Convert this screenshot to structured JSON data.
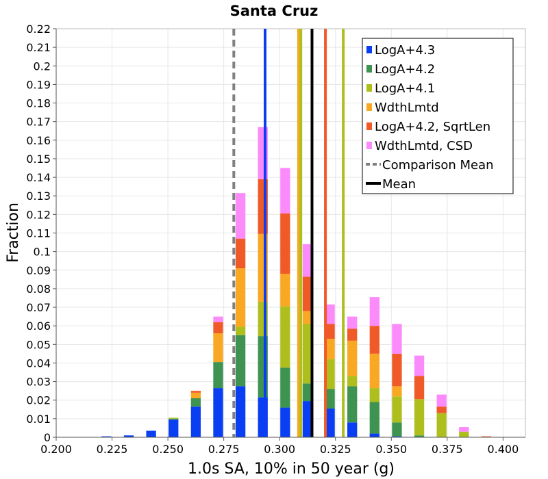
{
  "chart_data": {
    "type": "bar",
    "stacked": true,
    "title": "Santa Cruz",
    "xlabel": "1.0s SA, 10% in 50 year (g)",
    "ylabel": "Fraction",
    "xlim": [
      0.2,
      0.41
    ],
    "ylim": [
      0,
      0.22
    ],
    "grid": true,
    "legend_position": "top-right",
    "xticks": [
      {
        "value": 0.2,
        "label": "0.200"
      },
      {
        "value": 0.225,
        "label": "0.225"
      },
      {
        "value": 0.25,
        "label": "0.250"
      },
      {
        "value": 0.275,
        "label": "0.275"
      },
      {
        "value": 0.3,
        "label": "0.300"
      },
      {
        "value": 0.325,
        "label": "0.325"
      },
      {
        "value": 0.35,
        "label": "0.350"
      },
      {
        "value": 0.375,
        "label": "0.375"
      },
      {
        "value": 0.4,
        "label": "0.400"
      }
    ],
    "yticks": [
      {
        "value": 0,
        "label": "0"
      },
      {
        "value": 0.01,
        "label": "0.01"
      },
      {
        "value": 0.02,
        "label": "0.02"
      },
      {
        "value": 0.03,
        "label": "0.03"
      },
      {
        "value": 0.04,
        "label": "0.04"
      },
      {
        "value": 0.05,
        "label": "0.05"
      },
      {
        "value": 0.06,
        "label": "0.06"
      },
      {
        "value": 0.07,
        "label": "0.07"
      },
      {
        "value": 0.08,
        "label": "0.08"
      },
      {
        "value": 0.09,
        "label": "0.09"
      },
      {
        "value": 0.1,
        "label": "0.1"
      },
      {
        "value": 0.11,
        "label": "0.11"
      },
      {
        "value": 0.12,
        "label": "0.12"
      },
      {
        "value": 0.13,
        "label": "0.13"
      },
      {
        "value": 0.14,
        "label": "0.14"
      },
      {
        "value": 0.15,
        "label": "0.15"
      },
      {
        "value": 0.16,
        "label": "0.16"
      },
      {
        "value": 0.17,
        "label": "0.17"
      },
      {
        "value": 0.18,
        "label": "0.18"
      },
      {
        "value": 0.19,
        "label": "0.19"
      },
      {
        "value": 0.2,
        "label": "0.2"
      },
      {
        "value": 0.21,
        "label": "0.21"
      },
      {
        "value": 0.22,
        "label": "0.22"
      }
    ],
    "bin_width": 0.005,
    "bin_edges": [
      0.2,
      0.205,
      0.21,
      0.215,
      0.22,
      0.225,
      0.23,
      0.235,
      0.24,
      0.245,
      0.25,
      0.255,
      0.26,
      0.265,
      0.27,
      0.275,
      0.28,
      0.285,
      0.29,
      0.295,
      0.3,
      0.305,
      0.31,
      0.315,
      0.32,
      0.325,
      0.33,
      0.335,
      0.34,
      0.345,
      0.35,
      0.355,
      0.36,
      0.365,
      0.37,
      0.375,
      0.38,
      0.385,
      0.39,
      0.395,
      0.4,
      0.405
    ],
    "series": [
      {
        "name": "LogA+4.3",
        "color": "#0a3ef2",
        "values": [
          0,
          0,
          0,
          0,
          0.0005,
          0,
          0.001,
          0,
          0.0035,
          0,
          0.0095,
          0,
          0.0165,
          0,
          0.0265,
          0,
          0.0275,
          0,
          0.0215,
          0,
          0.016,
          0,
          0.0195,
          0,
          0.0155,
          0,
          0.008,
          0,
          0.002,
          0,
          0.0005,
          0,
          0,
          0,
          0,
          0,
          0,
          0,
          0,
          0,
          0
        ]
      },
      {
        "name": "LogA+4.2",
        "color": "#3f9350",
        "values": [
          0,
          0,
          0,
          0,
          0,
          0,
          0,
          0,
          0,
          0,
          0.0005,
          0,
          0.0045,
          0,
          0.014,
          0,
          0.0275,
          0,
          0.033,
          0,
          0.0215,
          0,
          0.0095,
          0,
          0.0105,
          0,
          0.0195,
          0,
          0.017,
          0,
          0.0075,
          0,
          0.001,
          0,
          0,
          0,
          0,
          0,
          0,
          0,
          0
        ]
      },
      {
        "name": "LogA+4.1",
        "color": "#aebf1d",
        "values": [
          0,
          0,
          0,
          0,
          0,
          0,
          0,
          0,
          0,
          0,
          0.0005,
          0,
          0,
          0,
          0,
          0,
          0.0045,
          0,
          0.0185,
          0,
          0.033,
          0,
          0.032,
          0,
          0.016,
          0,
          0.0055,
          0,
          0.0075,
          0,
          0.014,
          0,
          0.0195,
          0,
          0.013,
          0,
          0.003,
          0,
          0,
          0,
          0
        ]
      },
      {
        "name": "WdthLmtd",
        "color": "#f9a823",
        "values": [
          0,
          0,
          0,
          0,
          0,
          0,
          0,
          0,
          0,
          0,
          0,
          0,
          0.003,
          0,
          0.0155,
          0,
          0.0315,
          0,
          0.0365,
          0,
          0.0175,
          0,
          0.007,
          0,
          0.011,
          0,
          0.019,
          0,
          0.0185,
          0,
          0.0055,
          0,
          0,
          0,
          0,
          0,
          0,
          0,
          0,
          0,
          0
        ]
      },
      {
        "name": "LogA+4.2, SqrtLen",
        "color": "#f05a28",
        "values": [
          0,
          0,
          0,
          0,
          0,
          0,
          0,
          0,
          0,
          0,
          0,
          0,
          0.001,
          0,
          0.006,
          0,
          0.016,
          0,
          0.0295,
          0,
          0.0325,
          0,
          0.0185,
          0,
          0.008,
          0,
          0.0065,
          0,
          0.015,
          0,
          0.0175,
          0,
          0.0125,
          0,
          0.0035,
          0,
          0,
          0,
          0.0005,
          0,
          0
        ]
      },
      {
        "name": "WdthLmtd, CSD",
        "color": "#fb8afb",
        "values": [
          0,
          0,
          0,
          0,
          0,
          0,
          0,
          0,
          0,
          0,
          0,
          0,
          0,
          0,
          0.003,
          0,
          0.0245,
          0,
          0.028,
          0,
          0.0245,
          0,
          0.0175,
          0,
          0.0105,
          0,
          0.0065,
          0,
          0.0155,
          0,
          0.016,
          0,
          0.011,
          0,
          0.0065,
          0,
          0.0025,
          0,
          0,
          0,
          0
        ]
      }
    ],
    "vertical_lines": [
      {
        "name": "Comparison Mean",
        "x": 0.2795,
        "color": "#808080",
        "dashed": true
      },
      {
        "name": "LogA+4.3",
        "x": 0.2935,
        "color": "#0a3ef2",
        "dashed": false
      },
      {
        "name": "WdthLmtd",
        "x": 0.3085,
        "color": "#f9a823",
        "dashed": false
      },
      {
        "name": "LogA+4.1",
        "x": 0.3095,
        "color": "#aebf1d",
        "dashed": false
      },
      {
        "name": "Mean",
        "x": 0.3145,
        "color": "#000000",
        "dashed": false
      },
      {
        "name": "LogA+4.2, SqrtLen",
        "x": 0.3205,
        "color": "#f05a28",
        "dashed": false
      },
      {
        "name": "LogA+4.2",
        "x": 0.3285,
        "color": "#aebf1d",
        "dashed": false
      }
    ],
    "legend": [
      {
        "label": "LogA+4.3",
        "kind": "square",
        "color": "#0a3ef2"
      },
      {
        "label": "LogA+4.2",
        "kind": "square",
        "color": "#3f9350"
      },
      {
        "label": "LogA+4.1",
        "kind": "square",
        "color": "#aebf1d"
      },
      {
        "label": "WdthLmtd",
        "kind": "square",
        "color": "#f9a823"
      },
      {
        "label": "LogA+4.2, SqrtLen",
        "kind": "square",
        "color": "#f05a28"
      },
      {
        "label": "WdthLmtd, CSD",
        "kind": "square",
        "color": "#fb8afb"
      },
      {
        "label": "Comparison Mean",
        "kind": "dash",
        "color": "#808080"
      },
      {
        "label": "Mean",
        "kind": "line",
        "color": "#000000"
      }
    ]
  }
}
